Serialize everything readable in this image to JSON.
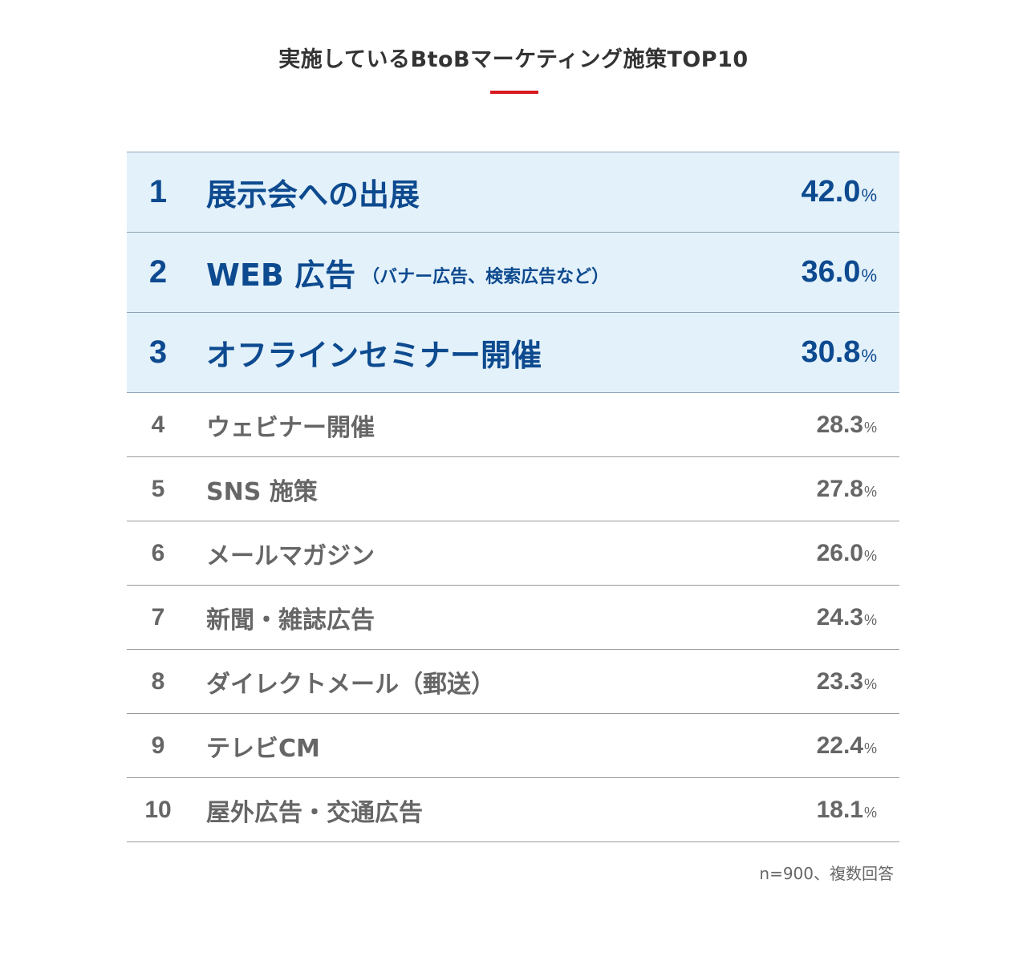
{
  "title": "実施しているBtoBマーケティング施策TOP10",
  "note": "n=900、複数回答",
  "percent_unit": "%",
  "colors": {
    "accent_rule": "#d71920",
    "highlight_bg": "#e3f1fa",
    "highlight_text": "#0d4a8f",
    "body_text": "#666666"
  },
  "chart_data": {
    "type": "table",
    "title": "実施しているBtoBマーケティング施策TOP10",
    "columns": [
      "rank",
      "item",
      "percent"
    ],
    "highlighted_ranks": [
      1,
      2,
      3
    ],
    "rows": [
      {
        "rank": "1",
        "label": "展示会への出展",
        "sub": "",
        "value": "42.0"
      },
      {
        "rank": "2",
        "label": "WEB 広告",
        "sub": "（バナー広告、検索広告など）",
        "value": "36.0"
      },
      {
        "rank": "3",
        "label": "オフラインセミナー開催",
        "sub": "",
        "value": "30.8"
      },
      {
        "rank": "4",
        "label": "ウェビナー開催",
        "sub": "",
        "value": "28.3"
      },
      {
        "rank": "5",
        "label": "SNS 施策",
        "sub": "",
        "value": "27.8"
      },
      {
        "rank": "6",
        "label": "メールマガジン",
        "sub": "",
        "value": "26.0"
      },
      {
        "rank": "7",
        "label": "新聞・雑誌広告",
        "sub": "",
        "value": "24.3"
      },
      {
        "rank": "8",
        "label": "ダイレクトメール（郵送）",
        "sub": "",
        "value": "23.3"
      },
      {
        "rank": "9",
        "label": "テレビCM",
        "sub": "",
        "value": "22.4"
      },
      {
        "rank": "10",
        "label": "屋外広告・交通広告",
        "sub": "",
        "value": "18.1"
      }
    ]
  }
}
